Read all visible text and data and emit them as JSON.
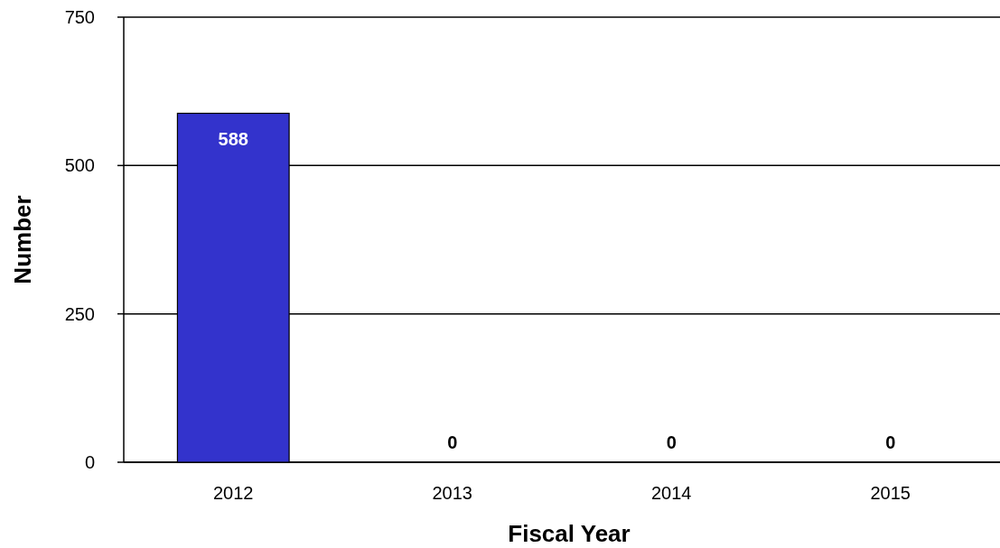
{
  "chart_data": {
    "type": "bar",
    "xlabel": "Fiscal Year",
    "ylabel": "Number",
    "categories": [
      "2012",
      "2013",
      "2014",
      "2015"
    ],
    "values": [
      588,
      0,
      0,
      0
    ],
    "color": "#3333cc",
    "ylim": [
      0,
      750
    ],
    "yticks": [
      0,
      250,
      500,
      750
    ],
    "grid": "y",
    "data_labels": true
  }
}
